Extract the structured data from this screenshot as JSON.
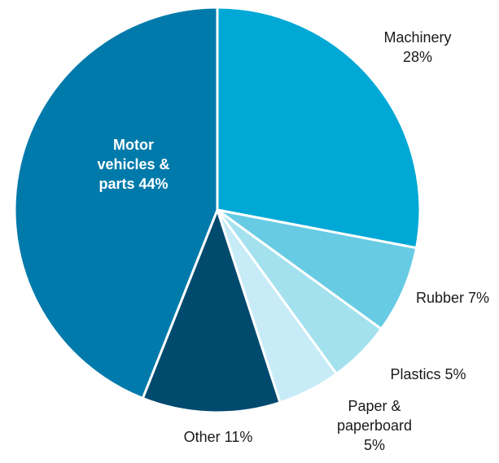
{
  "chart_data": {
    "type": "pie",
    "title": "",
    "start_angle_deg": 0,
    "direction": "clockwise",
    "legend": "none",
    "slices": [
      {
        "name": "Machinery",
        "value": 28,
        "label": [
          "Machinery",
          "28%"
        ],
        "color": "#00a8d6",
        "label_position": "outside"
      },
      {
        "name": "Rubber",
        "value": 7,
        "label": [
          "Rubber 7%"
        ],
        "color": "#67cbe4",
        "label_position": "outside"
      },
      {
        "name": "Plastics",
        "value": 5,
        "label": [
          "Plastics 5%"
        ],
        "color": "#a4e1ef",
        "label_position": "outside"
      },
      {
        "name": "Paper & paperboard",
        "value": 5,
        "label": [
          "Paper &",
          "paperboard",
          "5%"
        ],
        "color": "#c7ecf8",
        "label_position": "outside"
      },
      {
        "name": "Other",
        "value": 11,
        "label": [
          "Other 11%"
        ],
        "color": "#004a6e",
        "label_position": "outside"
      },
      {
        "name": "Motor vehicles & parts",
        "value": 44,
        "label": [
          "Motor",
          "vehicles &",
          "parts 44%"
        ],
        "color": "#007aab",
        "label_position": "inside"
      }
    ]
  }
}
